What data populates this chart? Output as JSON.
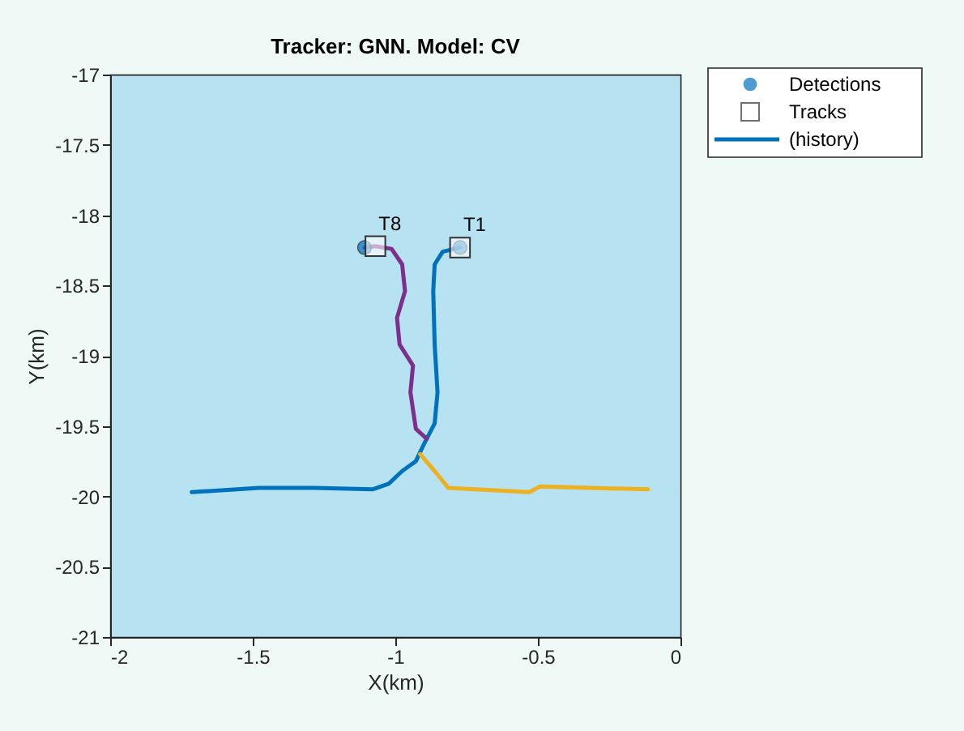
{
  "chart_data": {
    "type": "line",
    "title": "Tracker: GNN. Model: CV",
    "xlabel": "X(km)",
    "ylabel": "Y(km)",
    "xlim": [
      -2,
      0
    ],
    "xticks": [
      -2,
      -1.5,
      -1,
      -0.5,
      0
    ],
    "ylim": [
      -21,
      -17
    ],
    "yticks": [
      -21,
      -20.5,
      -20,
      -19.5,
      -19,
      -18.5,
      -18,
      -17.5,
      -17
    ],
    "grid": false,
    "legend": "top right",
    "series": [
      {
        "name": "(history)",
        "color": "#0072bd",
        "x": [
          -1.714,
          -1.477,
          -1.288,
          -1.08,
          -1.023,
          -0.976,
          -0.928,
          -0.9,
          -0.862,
          -0.852,
          -0.862,
          -0.867,
          -0.862,
          -0.834,
          -0.773
        ],
        "values": [
          -19.97,
          -19.94,
          -19.94,
          -19.95,
          -19.91,
          -19.82,
          -19.75,
          -19.63,
          -19.48,
          -19.26,
          -18.92,
          -18.54,
          -18.35,
          -18.26,
          -18.23
        ]
      },
      {
        "color": "#7e2f8e",
        "x": [
          -0.89,
          -0.928,
          -0.947,
          -0.938,
          -0.985,
          -0.994,
          -0.966,
          -0.976,
          -1.013,
          -1.07,
          -1.108
        ],
        "values": [
          -19.59,
          -19.52,
          -19.26,
          -19.07,
          -18.92,
          -18.73,
          -18.54,
          -18.35,
          -18.24,
          -18.22,
          -18.23
        ]
      },
      {
        "color": "#edb120",
        "x": [
          -0.913,
          -0.862,
          -0.814,
          -0.53,
          -0.493,
          -0.114
        ],
        "values": [
          -19.7,
          -19.82,
          -19.94,
          -19.97,
          -19.93,
          -19.95
        ]
      },
      {
        "name": "Detections",
        "type": "scatter",
        "marker": "circle",
        "color": "#0072bd",
        "x": [
          -0.773,
          -1.108
        ],
        "values": [
          -18.23,
          -18.23
        ]
      },
      {
        "name": "Tracks",
        "type": "scatter",
        "marker": "square",
        "color": "#ffffff",
        "x": [
          -0.773,
          -1.07
        ],
        "values": [
          -18.23,
          -18.22
        ]
      }
    ],
    "annotations": [
      "T1",
      "T8"
    ]
  }
}
